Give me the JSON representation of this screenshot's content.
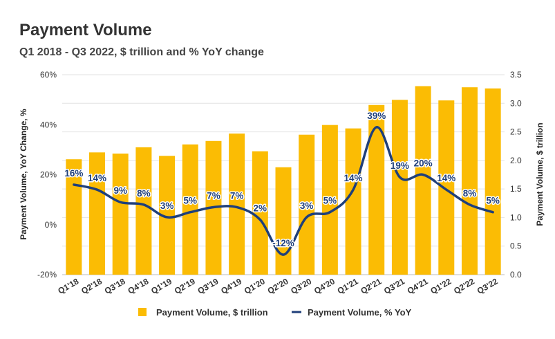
{
  "title": "Payment Volume",
  "subtitle": "Q1 2018 - Q3 2022, $ trillion and % YoY change",
  "chart_data": {
    "type": "bar",
    "categories": [
      "Q1'18",
      "Q2'18",
      "Q3'18",
      "Q4'18",
      "Q1'19",
      "Q2'19",
      "Q3'19",
      "Q4'19",
      "Q1'20",
      "Q2'20",
      "Q3'20",
      "Q4'20",
      "Q1'21",
      "Q2'21",
      "Q3'21",
      "Q4'21",
      "Q1'22",
      "Q2'22",
      "Q3'22"
    ],
    "series": [
      {
        "name": "Payment Volume, $ trillion",
        "type": "bar",
        "axis": "right",
        "color": "#FBBC04",
        "values": [
          2.02,
          2.14,
          2.12,
          2.23,
          2.08,
          2.28,
          2.34,
          2.47,
          2.16,
          1.88,
          2.45,
          2.62,
          2.56,
          2.97,
          3.06,
          3.3,
          3.05,
          3.28,
          3.26
        ]
      },
      {
        "name": "Payment Volume, % YoY",
        "type": "line",
        "axis": "left",
        "color": "#1F3F7A",
        "values": [
          16,
          14,
          9,
          8,
          3,
          5,
          7,
          7,
          2,
          -12,
          3,
          5,
          14,
          39,
          19,
          20,
          14,
          8,
          5
        ],
        "labels": [
          "16%",
          "14%",
          "9%",
          "8%",
          "3%",
          "5%",
          "7%",
          "7%",
          "2%",
          "-12%",
          "3%",
          "5%",
          "14%",
          "39%",
          "19%",
          "20%",
          "14%",
          "8%",
          "5%"
        ]
      }
    ],
    "left_axis": {
      "label": "Payment Volume, YoY Change, %",
      "min": -20,
      "max": 60,
      "ticks": [
        "-20%",
        "0%",
        "20%",
        "40%",
        "60%"
      ]
    },
    "right_axis": {
      "label": "Payment Volume, $ trillion",
      "min": 0,
      "max": 3.5,
      "ticks": [
        "0.0",
        "0.5",
        "1.0",
        "1.5",
        "2.0",
        "2.5",
        "3.0",
        "3.5"
      ]
    },
    "grid": true,
    "legend": "bottom"
  }
}
